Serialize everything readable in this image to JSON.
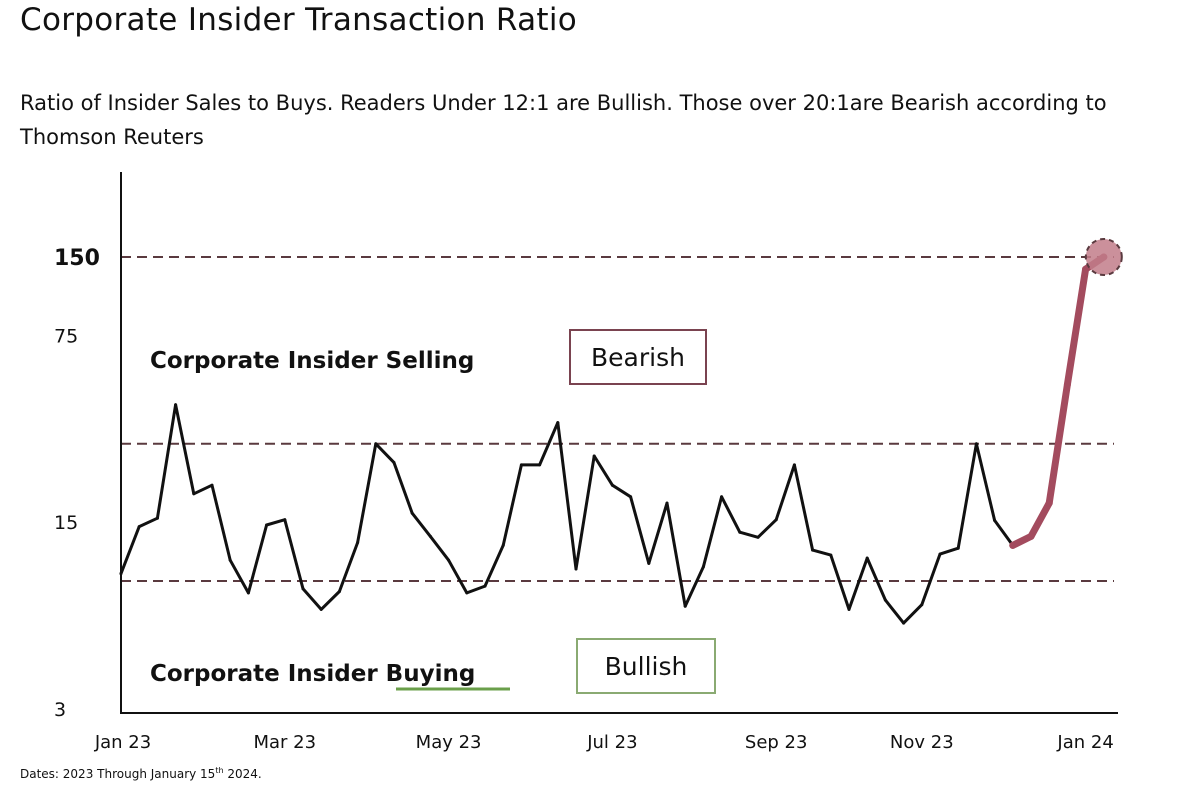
{
  "header": {
    "title": "Corporate Insider Transaction Ratio",
    "subtitle": "Ratio of Insider Sales to Buys. Readers Under 12:1 are Bullish. Those over 20:1are Bearish according to Thomson Reuters"
  },
  "footnote": {
    "text": "Dates: 2023 Through January 15",
    "sup": "th",
    "tail": " 2024."
  },
  "chart_data": {
    "type": "line",
    "title": "Corporate Insider Transaction Ratio",
    "subtitle": "Ratio of Insider Sales to Buys. Readers Under 12:1 are Bullish. Those over 20:1are Bearish according to Thomson Reuters",
    "y_scale": "log",
    "ylim": [
      3,
      300
    ],
    "y_ticks": [
      {
        "value": 3,
        "label": "3"
      },
      {
        "value": 15,
        "label": "15"
      },
      {
        "value": 75,
        "label": "75"
      },
      {
        "value": 150,
        "label": "150",
        "bold": true
      }
    ],
    "x_tick_labels": [
      {
        "index": 0,
        "label": "Jan 23"
      },
      {
        "index": 9,
        "label": "Mar 23"
      },
      {
        "index": 18,
        "label": "May 23"
      },
      {
        "index": 27,
        "label": "Jul 23"
      },
      {
        "index": 36,
        "label": "Sep 23"
      },
      {
        "index": 44,
        "label": "Nov 23"
      },
      {
        "index": 53,
        "label": "Jan 24"
      }
    ],
    "reference_lines": [
      {
        "value": 150,
        "style": "dashed",
        "color": "#5a3a3f"
      },
      {
        "value": 30,
        "style": "dashed",
        "color": "#5a3a3f"
      },
      {
        "value": 9.2,
        "style": "dashed",
        "color": "#5a3a3f"
      }
    ],
    "series": [
      {
        "color": "#111111",
        "values": [
          9.8,
          14.7,
          15.8,
          42,
          19.5,
          21,
          11,
          8.3,
          14.9,
          15.6,
          8.6,
          7.2,
          8.4,
          12.8,
          30,
          25.5,
          16.5,
          13.5,
          11,
          8.3,
          8.8,
          12.5,
          25,
          25,
          36,
          10.2,
          27,
          21,
          19,
          10.7,
          18,
          7.4,
          10.4,
          19,
          14,
          13.4,
          15.6,
          25,
          12,
          11.5,
          7.2,
          11.2,
          7.8,
          6.4,
          7.5,
          11.6,
          12.2,
          30,
          15.5,
          12.5
        ]
      },
      {
        "color": "#a34b5e",
        "values": [
          12.5,
          13.5,
          18,
          50,
          135,
          150
        ],
        "start_index": 49
      }
    ],
    "highlight_point": {
      "index": 54,
      "value": 150,
      "fill": "#c27c8a",
      "stroke": "#5a3a3f"
    },
    "annotations": [
      {
        "text": "Corporate Insider Selling",
        "type": "region-label"
      },
      {
        "text": "Corporate Insider Buying",
        "type": "region-label",
        "underline_word": "Buying",
        "underline_color": "#6a9f4a"
      },
      {
        "text": "Bearish",
        "type": "boxed",
        "border_color": "#7a4350"
      },
      {
        "text": "Bullish",
        "type": "boxed",
        "border_color": "#8aaa72"
      }
    ]
  }
}
